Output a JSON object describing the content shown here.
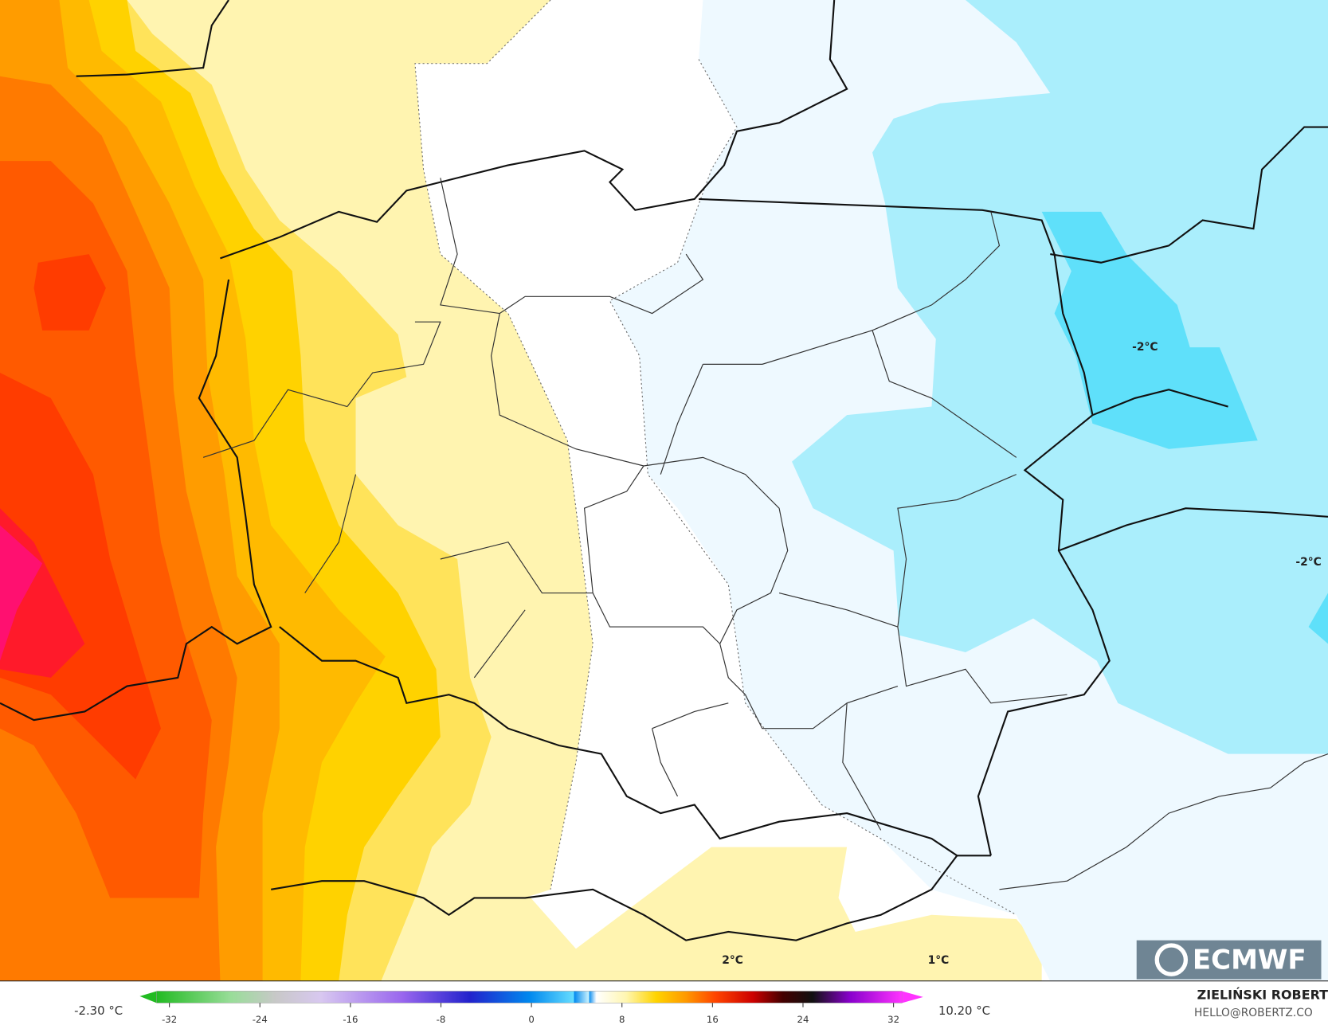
{
  "map_labels": [
    {
      "text": "-2°C"
    },
    {
      "text": "-2°C"
    },
    {
      "text": "2°C"
    },
    {
      "text": "1°C"
    }
  ],
  "logo": "ECMWF",
  "colorbar": {
    "min_label": "-2.30 °C",
    "max_label": "10.20 °C",
    "ticks": [
      -32,
      -24,
      -16,
      -8,
      0,
      8,
      16,
      24,
      32
    ]
  },
  "credit": {
    "name": "ZIELIŃSKI ROBERT",
    "email": "HELLO@ROBERTZ.CO"
  }
}
